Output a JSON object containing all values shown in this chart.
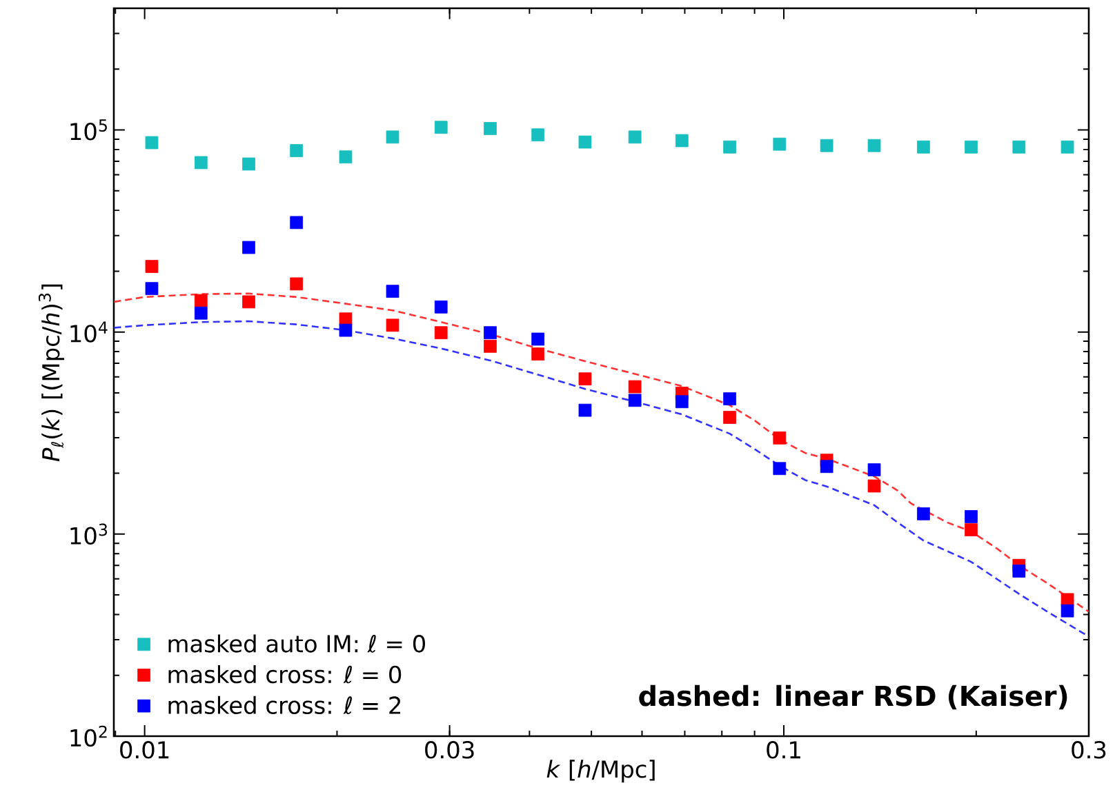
{
  "chart_data": {
    "type": "scatter",
    "xlabel": "*k* [*h*/Mpc]",
    "ylabel": "*P*$_{ℓ}$(*k*) [(Mpc/*h*)$^{3}$]",
    "log": "xy",
    "grid": false,
    "legend": "bottom left",
    "marker": "square",
    "xlim": [
      0.00895,
      0.3
    ],
    "ylim": [
      100,
      400000
    ],
    "xticks": [
      0.01,
      0.03,
      0.1,
      0.3
    ],
    "yticks": [
      {
        "value": 100,
        "label": "10$^{2}$"
      },
      {
        "value": 1000,
        "label": "10$^{3}$"
      },
      {
        "value": 10000,
        "label": "10$^{4}$"
      },
      {
        "value": 100000,
        "label": "10$^{5}$"
      }
    ],
    "annotations": [
      "dashed: linear RSD (Kaiser)"
    ],
    "x": [
      0.01026,
      0.01225,
      0.01455,
      0.01728,
      0.02063,
      0.02443,
      0.02909,
      0.03473,
      0.04124,
      0.04887,
      0.05848,
      0.06928,
      0.08229,
      0.09847,
      0.1167,
      0.1385,
      0.1654,
      0.1964,
      0.2333,
      0.2778
    ],
    "series": [
      {
        "name": "masked auto IM: ℓ = 0",
        "color": "#17bfbf",
        "values": [
          86500,
          68900,
          67800,
          79000,
          73500,
          92200,
          103000,
          101600,
          94500,
          87100,
          92200,
          88500,
          82300,
          85000,
          83660,
          83660,
          82300,
          82300,
          82300,
          82300
        ]
      },
      {
        "name": "masked cross: ℓ = 0",
        "color": "#ff0000",
        "values": [
          21100,
          14300,
          14100,
          17300,
          11600,
          10800,
          9920,
          8500,
          7780,
          5860,
          5360,
          4980,
          3780,
          2990,
          2320,
          1730,
          null,
          1050,
          700,
          474
        ]
      },
      {
        "name": "masked cross: ℓ = 2",
        "color": "#0000ff",
        "values": [
          16400,
          12400,
          26200,
          34800,
          10200,
          15900,
          13300,
          9920,
          9220,
          4100,
          4590,
          4520,
          4670,
          2110,
          2160,
          2080,
          1260,
          1220,
          656,
          417
        ]
      },
      {
        "type": "line",
        "line_style": "dashed",
        "marker": "none",
        "color": "#ff3333",
        "x": [
          0.00896,
          0.01,
          0.01225,
          0.01455,
          0.01728,
          0.02063,
          0.02443,
          0.02909,
          0.03473,
          0.04124,
          0.04887,
          0.05848,
          0.06928,
          0.08229,
          0.09024,
          0.09847,
          0.108,
          0.1167,
          0.1385,
          0.1508,
          0.158,
          0.1804,
          0.1964,
          0.216,
          0.2333,
          0.2585,
          0.3
        ],
        "values": [
          14100,
          14900,
          15400,
          15500,
          14900,
          13800,
          12800,
          11200,
          9750,
          8290,
          7170,
          6200,
          5400,
          4340,
          3630,
          2940,
          2520,
          2360,
          1930,
          1640,
          1420,
          1140,
          1030,
          844,
          700,
          571,
          413
        ]
      },
      {
        "type": "line",
        "line_style": "dashed",
        "marker": "none",
        "color": "#3333ff",
        "x": [
          0.00896,
          0.01,
          0.01225,
          0.01455,
          0.01728,
          0.02063,
          0.02443,
          0.02909,
          0.03473,
          0.04124,
          0.04887,
          0.05848,
          0.06928,
          0.08229,
          0.09024,
          0.09847,
          0.108,
          0.1167,
          0.1385,
          0.1508,
          0.1654,
          0.1804,
          0.1964,
          0.216,
          0.2333,
          0.2585,
          0.3
        ],
        "values": [
          10500,
          10800,
          11200,
          11300,
          10900,
          10200,
          9300,
          8290,
          7230,
          6150,
          5230,
          4520,
          3910,
          3140,
          2620,
          2180,
          1850,
          1720,
          1390,
          1140,
          929,
          822,
          729,
          596,
          506,
          413,
          311
        ]
      }
    ]
  }
}
